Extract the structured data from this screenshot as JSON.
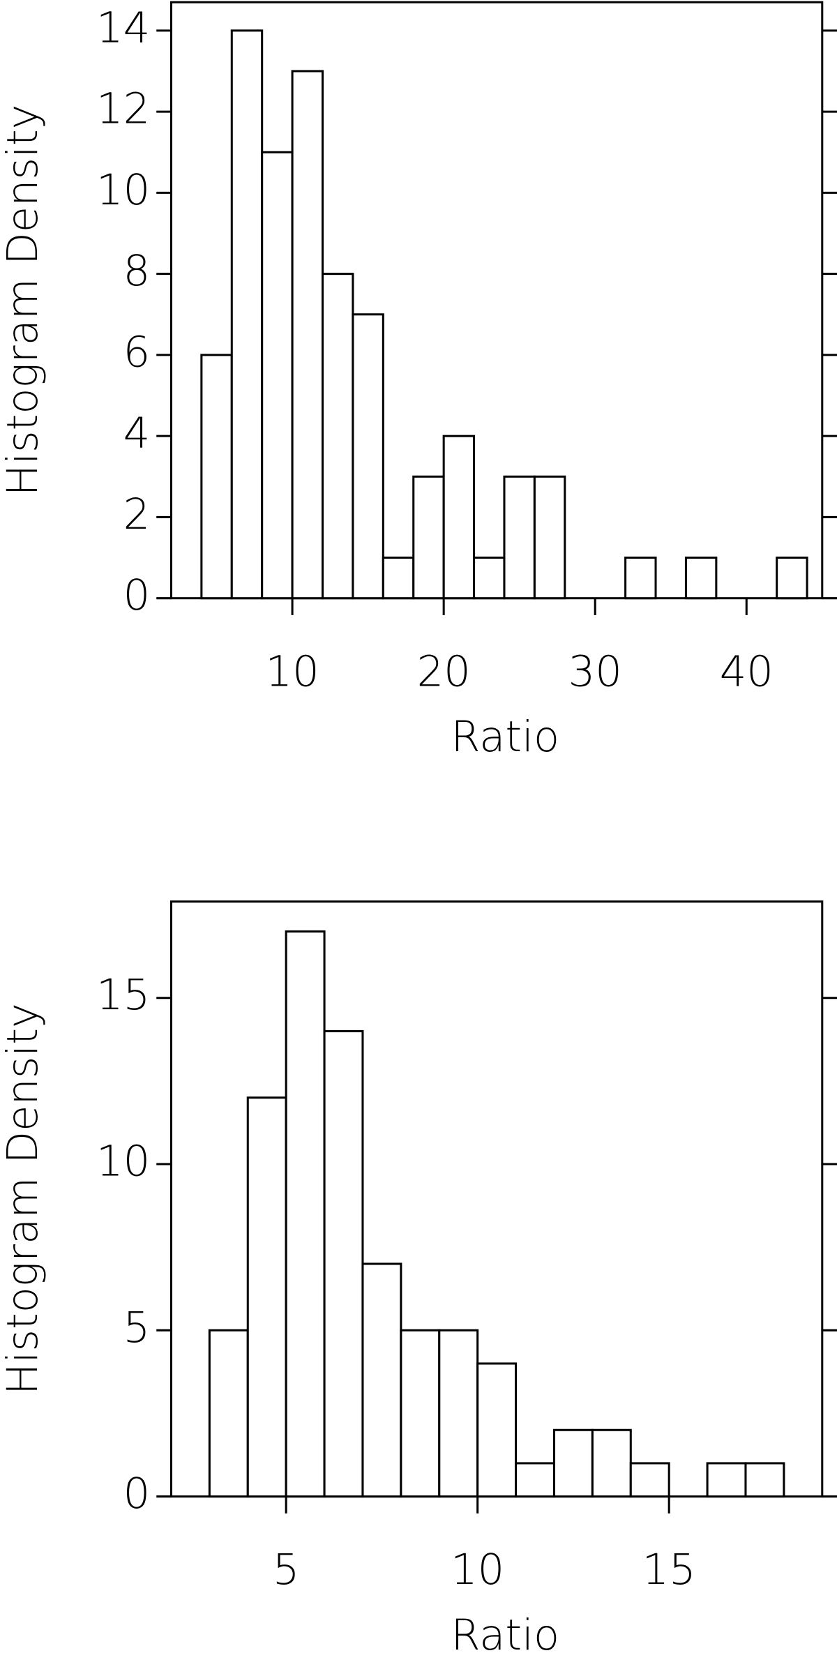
{
  "chart_data": [
    {
      "type": "histogram",
      "xlabel": "Ratio",
      "ylabel": "Histogram Density",
      "bins": [
        4,
        6,
        8,
        10,
        12,
        14,
        16,
        18,
        20,
        22,
        24,
        26,
        28,
        30,
        32,
        34,
        36,
        38,
        40,
        42,
        44
      ],
      "values": [
        6,
        14,
        11,
        13,
        8,
        7,
        1,
        3,
        4,
        1,
        3,
        3,
        0,
        0,
        1,
        0,
        1,
        0,
        0,
        1
      ],
      "xlim": [
        2,
        45
      ],
      "xticks": [
        10,
        20,
        30,
        40
      ],
      "ylim": [
        0,
        14.7
      ],
      "yticks": [
        0,
        2,
        4,
        6,
        8,
        10,
        12,
        14
      ],
      "color": "#ffffff"
    },
    {
      "type": "histogram",
      "xlabel": "Ratio",
      "ylabel": "Histogram Density",
      "bins": [
        3,
        4,
        5,
        6,
        7,
        8,
        9,
        10,
        11,
        12,
        13,
        14,
        15,
        16,
        17,
        18
      ],
      "values": [
        5,
        12,
        17,
        14,
        7,
        5,
        5,
        4,
        1,
        2,
        2,
        1,
        0,
        1,
        1
      ],
      "xlim": [
        2,
        19
      ],
      "xticks": [
        5,
        10,
        15
      ],
      "ylim": [
        0,
        17.9
      ],
      "yticks": [
        0,
        5,
        10,
        15
      ],
      "color": "#ffffff"
    }
  ]
}
